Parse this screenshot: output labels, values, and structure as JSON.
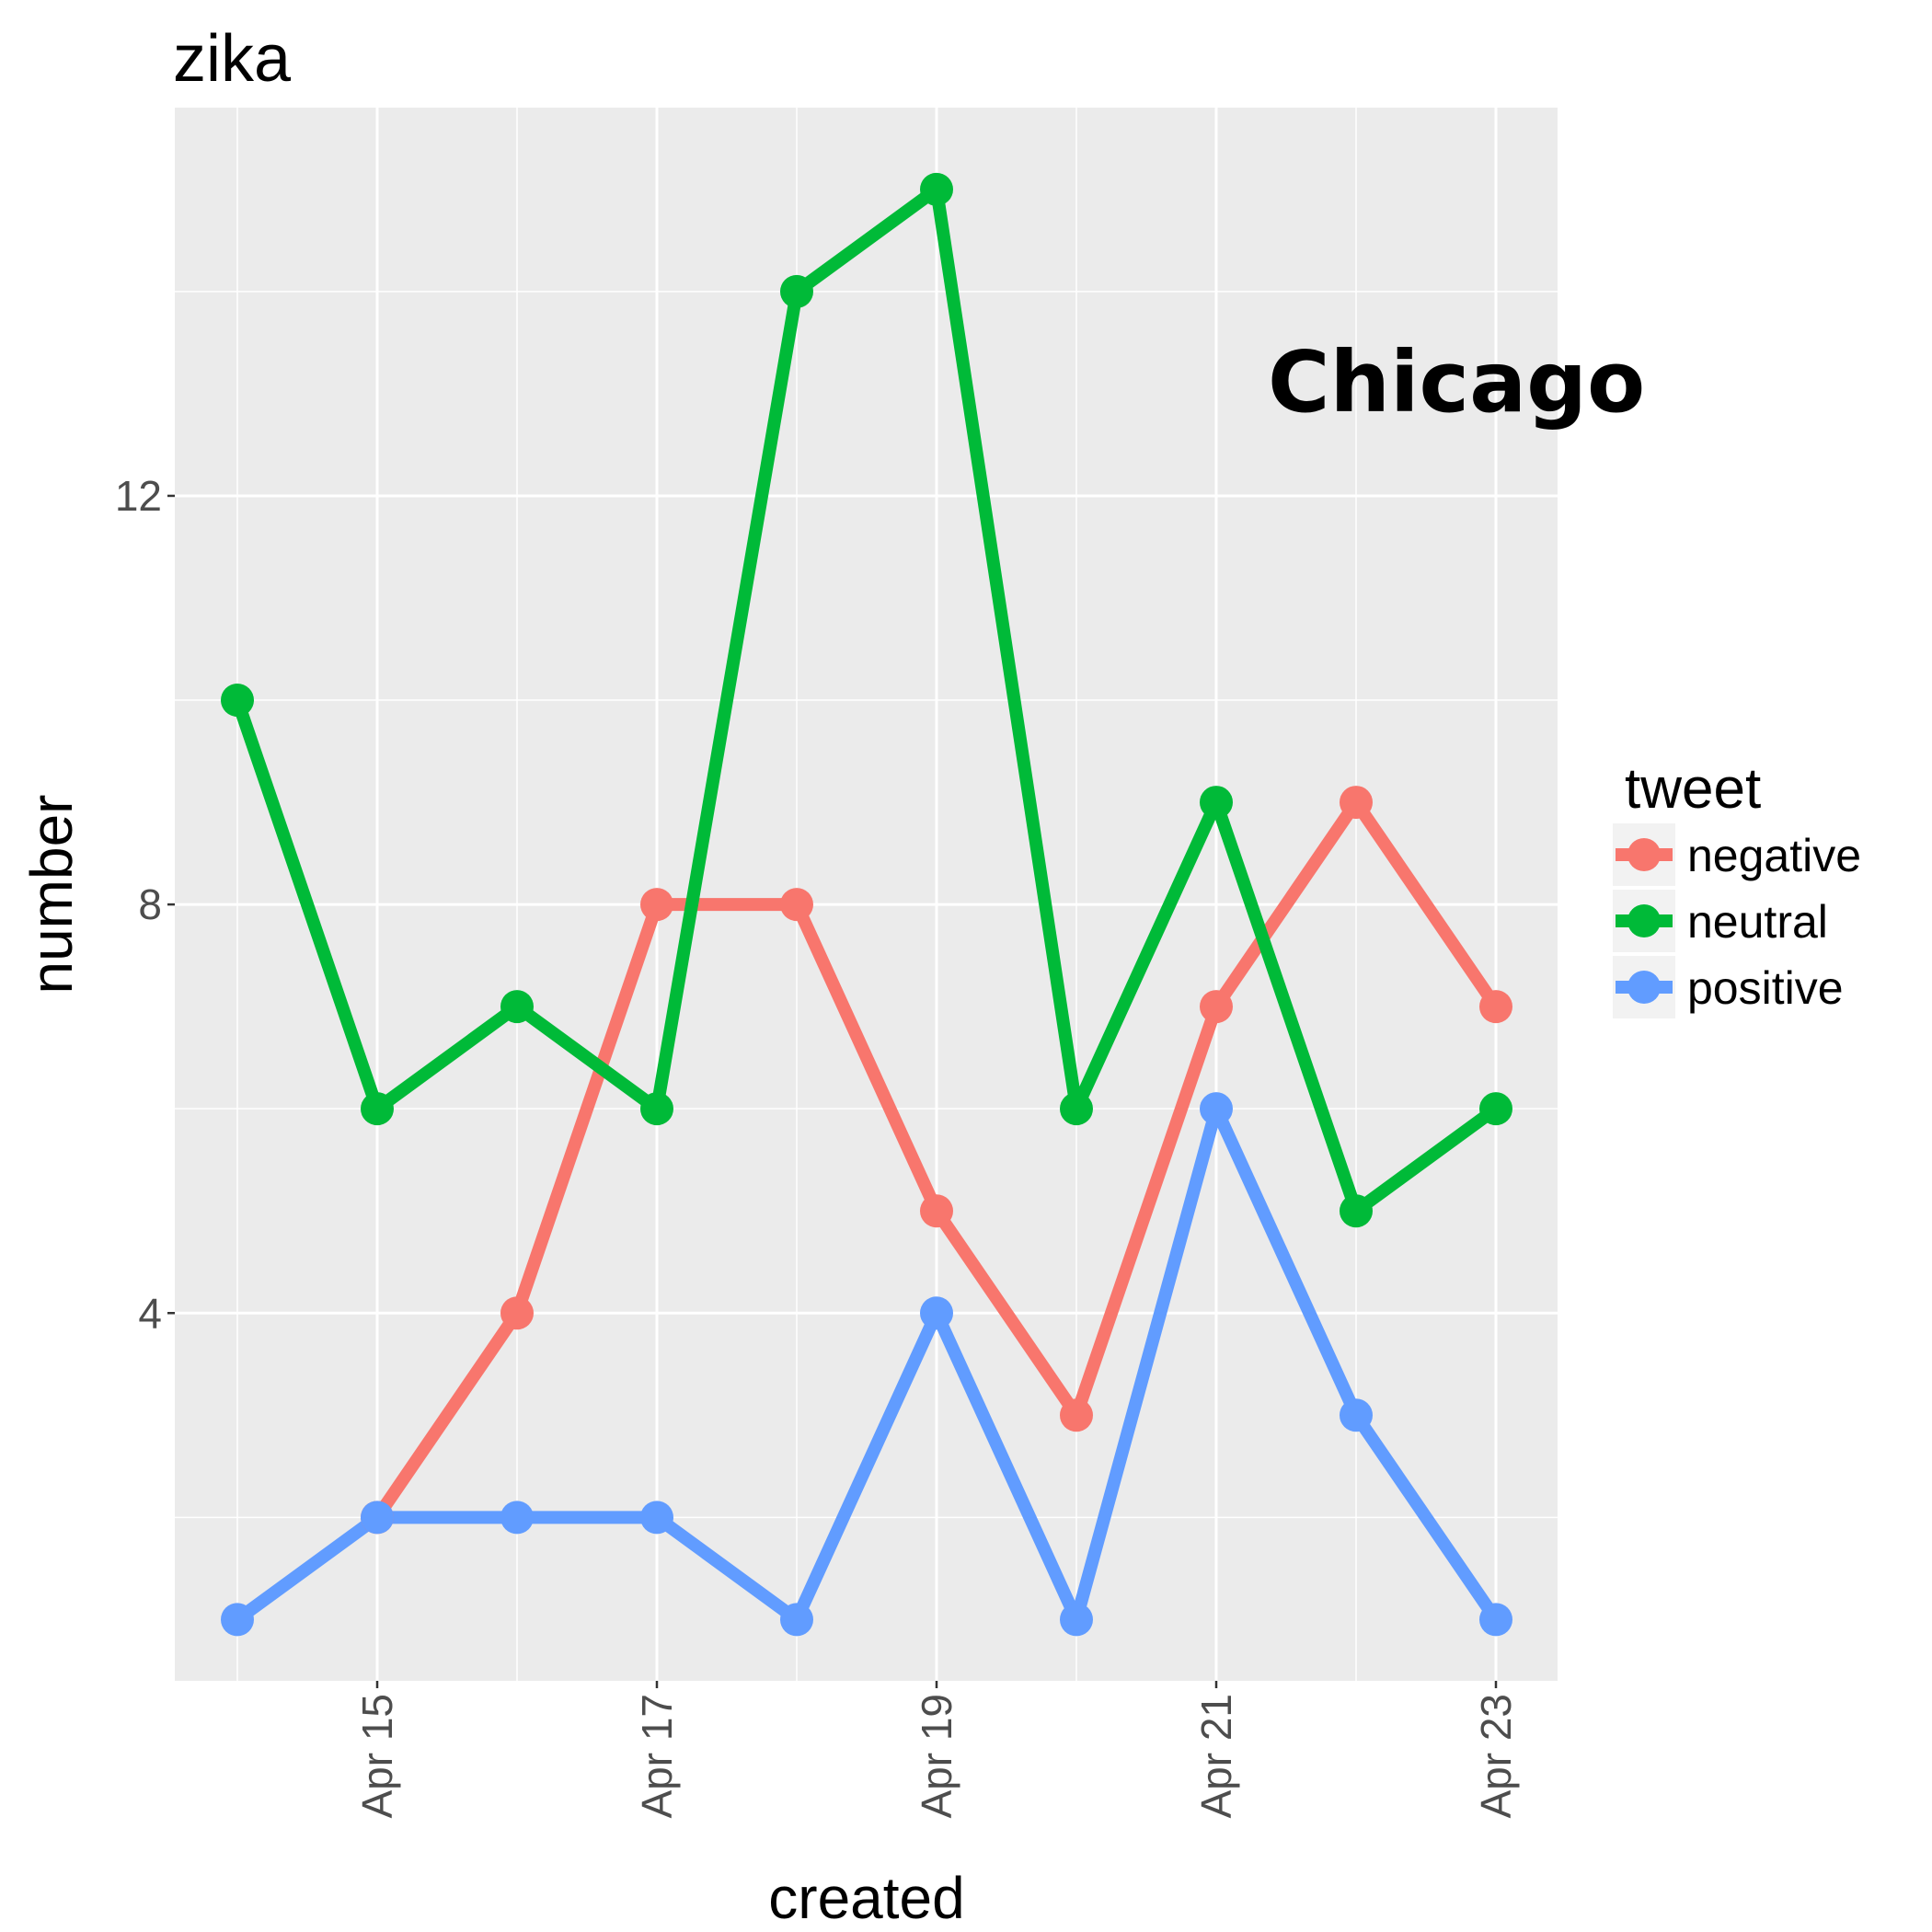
{
  "chart_data": {
    "type": "line",
    "title": "zika",
    "xlabel": "created",
    "ylabel": "number",
    "annotation": "Chicago",
    "x": [
      "Apr 14",
      "Apr 15",
      "Apr 16",
      "Apr 17",
      "Apr 18",
      "Apr 19",
      "Apr 20",
      "Apr 21",
      "Apr 22",
      "Apr 23"
    ],
    "x_tick_labels": [
      "Apr 15",
      "Apr 17",
      "Apr 19",
      "Apr 21",
      "Apr 23"
    ],
    "y_ticks": [
      4,
      8,
      12
    ],
    "ylim": [
      0.4,
      15.8
    ],
    "grid": true,
    "legend": {
      "title": "tweet",
      "position": "right"
    },
    "series": [
      {
        "name": "negative",
        "color": "#f8766d",
        "values": [
          null,
          2,
          4,
          8,
          8,
          5,
          3,
          7,
          9,
          7
        ]
      },
      {
        "name": "neutral",
        "color": "#00ba38",
        "values": [
          10,
          6,
          7,
          6,
          14,
          15,
          6,
          9,
          5,
          6
        ]
      },
      {
        "name": "positive",
        "color": "#619cff",
        "values": [
          1,
          2,
          2,
          2,
          1,
          4,
          1,
          6,
          3,
          1
        ]
      }
    ]
  }
}
